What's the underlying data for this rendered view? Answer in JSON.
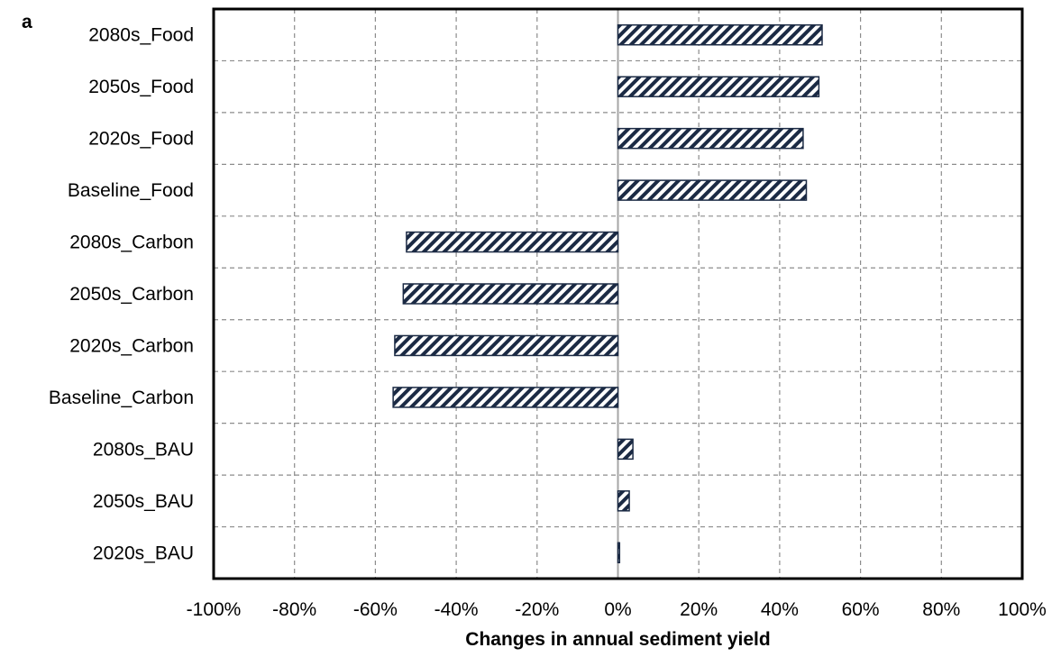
{
  "panel_label": "a",
  "colors": {
    "bar_stroke": "#1b2a44",
    "hatch": "#1b2a44",
    "grid": "#8c8c8c",
    "zero_line": "#a6a6a6",
    "frame": "#000000"
  },
  "chart_data": {
    "type": "bar",
    "orientation": "horizontal",
    "title": "",
    "xlabel": "Changes in annual sediment yield",
    "ylabel": "",
    "xlim": [
      -100,
      100
    ],
    "x_ticks": [
      "-100%",
      "-80%",
      "-60%",
      "-40%",
      "-20%",
      "0%",
      "20%",
      "40%",
      "60%",
      "80%",
      "100%"
    ],
    "x_tick_values": [
      -100,
      -80,
      -60,
      -40,
      -20,
      0,
      20,
      40,
      60,
      80,
      100
    ],
    "grid": true,
    "grid_style": "dashed",
    "bar_fill": "diagonal hatch",
    "categories": [
      "2080s_Food",
      "2050s_Food",
      "2020s_Food",
      "Baseline_Food",
      "2080s_Carbon",
      "2050s_Carbon",
      "2020s_Carbon",
      "Baseline_Carbon",
      "2080s_BAU",
      "2050s_BAU",
      "2020s_BAU"
    ],
    "values": [
      50.5,
      49.7,
      45.8,
      46.6,
      -52.3,
      -53.1,
      -55.2,
      -55.6,
      3.7,
      2.8,
      0.4
    ]
  }
}
